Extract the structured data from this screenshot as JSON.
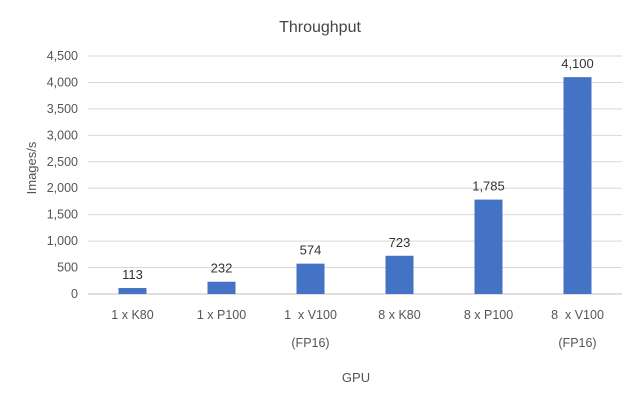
{
  "chart_data": {
    "type": "bar",
    "title": "Throughput",
    "xlabel": "GPU",
    "ylabel": "Images/s",
    "ylim": [
      0,
      4500
    ],
    "yticks": [
      0,
      500,
      1000,
      1500,
      2000,
      2500,
      3000,
      3500,
      4000,
      4500
    ],
    "ytick_labels": [
      "0",
      "500",
      "1,000",
      "1,500",
      "2,000",
      "2,500",
      "3,000",
      "3,500",
      "4,000",
      "4,500"
    ],
    "grid": true,
    "legend": "none",
    "categories": [
      [
        "1 x K80"
      ],
      [
        "1 x P100"
      ],
      [
        "1  x V100",
        "(FP16)"
      ],
      [
        "8 x K80"
      ],
      [
        "8 x P100"
      ],
      [
        "8  x V100",
        "(FP16)"
      ]
    ],
    "values": [
      113,
      232,
      574,
      723,
      1785,
      4100
    ],
    "value_labels": [
      "113",
      "232",
      "574",
      "723",
      "1,785",
      "4,100"
    ],
    "bar_color": "#4472c4"
  }
}
